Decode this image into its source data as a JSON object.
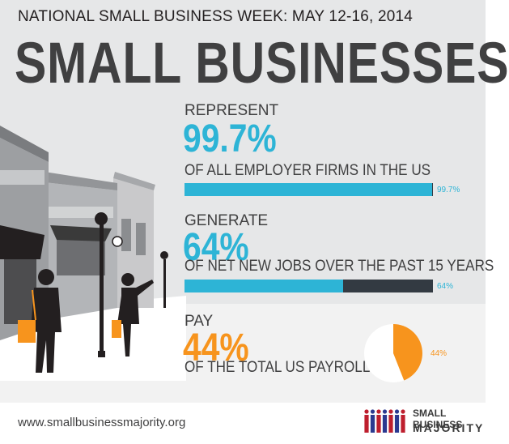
{
  "header": {
    "event": "NATIONAL SMALL BUSINESS WEEK: MAY 12-16, 2014",
    "title": "SMALL BUSINESSES"
  },
  "stats": [
    {
      "verb": "REPRESENT",
      "value": "99.7%",
      "description": "OF ALL EMPLOYER FIRMS IN THE US",
      "bar_label": "99.7%",
      "fraction": 0.997
    },
    {
      "verb": "GENERATE",
      "value": "64%",
      "description": "OF NET NEW JOBS OVER THE PAST 15 YEARS",
      "bar_label": "64%",
      "fraction": 0.64
    },
    {
      "verb": "PAY",
      "value": "44%",
      "description": "OF THE TOTAL US PAYROLL",
      "pie_label": "44%",
      "fraction": 0.44
    }
  ],
  "colors": {
    "blue": "#2db4d6",
    "orange": "#f7941d",
    "dark": "#333a42",
    "title": "#404041",
    "logo_red": "#be1e2d",
    "logo_blue": "#2b3990"
  },
  "footer": {
    "url": "www.smallbusinessmajority.org",
    "logo_line1": "SMALL BUSINESS",
    "logo_line2": "MAJORITY",
    "logo_icon": "people-grid-icon"
  },
  "illustration": "storefront-street-silhouette"
}
